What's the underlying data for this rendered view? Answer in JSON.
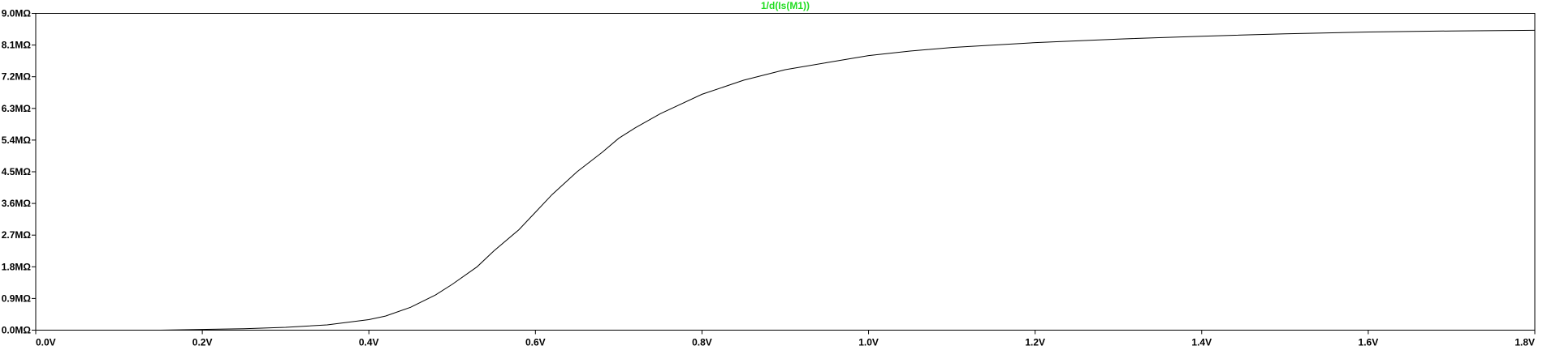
{
  "chart_data": {
    "type": "line",
    "title": "1/d(Is(M1))",
    "title_color": "#22dd22",
    "line_color": "#000000",
    "xlabel": "",
    "ylabel": "",
    "xlim": [
      0.0,
      1.8
    ],
    "ylim": [
      0.0,
      9.0
    ],
    "grid": false,
    "x_ticks": [
      0.0,
      0.2,
      0.4,
      0.6,
      0.8,
      1.0,
      1.2,
      1.4,
      1.6,
      1.8
    ],
    "x_tick_labels": [
      "0.0V",
      "0.2V",
      "0.4V",
      "0.6V",
      "0.8V",
      "1.0V",
      "1.2V",
      "1.4V",
      "1.6V",
      "1.8V"
    ],
    "y_ticks": [
      0.0,
      0.9,
      1.8,
      2.7,
      3.6,
      4.5,
      5.4,
      6.3,
      7.2,
      8.1,
      9.0
    ],
    "y_tick_labels": [
      "0.0MΩ",
      "0.9MΩ",
      "1.8MΩ",
      "2.7MΩ",
      "3.6MΩ",
      "4.5MΩ",
      "5.4MΩ",
      "6.3MΩ",
      "7.2MΩ",
      "8.1MΩ",
      "9.0MΩ"
    ],
    "series": [
      {
        "x": [
          0.0,
          0.1,
          0.15,
          0.2,
          0.25,
          0.3,
          0.35,
          0.4,
          0.42,
          0.45,
          0.48,
          0.5,
          0.53,
          0.55,
          0.58,
          0.6,
          0.62,
          0.65,
          0.68,
          0.7,
          0.72,
          0.75,
          0.8,
          0.85,
          0.9,
          0.95,
          1.0,
          1.05,
          1.1,
          1.15,
          1.2,
          1.3,
          1.4,
          1.5,
          1.6,
          1.7,
          1.8
        ],
        "y": [
          0.0,
          0.0,
          0.0,
          0.02,
          0.04,
          0.08,
          0.15,
          0.3,
          0.4,
          0.65,
          1.0,
          1.3,
          1.8,
          2.25,
          2.85,
          3.35,
          3.85,
          4.5,
          5.05,
          5.45,
          5.75,
          6.15,
          6.7,
          7.1,
          7.4,
          7.6,
          7.8,
          7.93,
          8.03,
          8.1,
          8.17,
          8.27,
          8.35,
          8.42,
          8.47,
          8.5,
          8.52
        ]
      }
    ]
  }
}
